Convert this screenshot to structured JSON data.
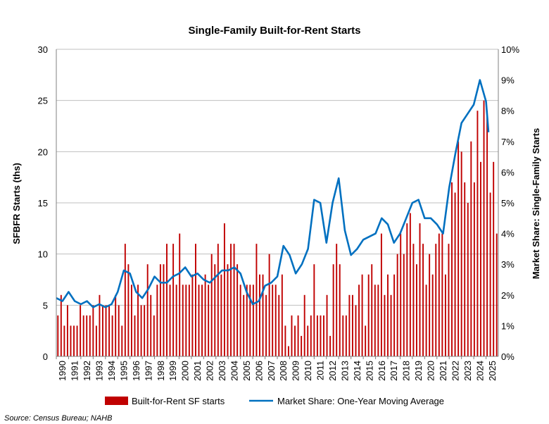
{
  "chart_data": {
    "type": "bar+line",
    "title": "Single-Family Built-for-Rent Starts",
    "ylabel": "SFBFR Starts (ths)",
    "y2label": "Market Share: Single-Family Starts",
    "ylim": [
      0,
      30
    ],
    "y2lim": [
      0,
      0.1
    ],
    "yticks": [
      "0",
      "5",
      "10",
      "15",
      "20",
      "25",
      "30"
    ],
    "y2ticks": [
      "0%",
      "1%",
      "2%",
      "3%",
      "4%",
      "5%",
      "6%",
      "7%",
      "8%",
      "9%",
      "10%"
    ],
    "years": [
      "1990",
      "1991",
      "1992",
      "1993",
      "1994",
      "1995",
      "1996",
      "1997",
      "1998",
      "1999",
      "2000",
      "2001",
      "2002",
      "2003",
      "2004",
      "2005",
      "2006",
      "2007",
      "2008",
      "2009",
      "2010",
      "2011",
      "2012",
      "2013",
      "2014",
      "2015",
      "2016",
      "2017",
      "2018",
      "2019",
      "2020",
      "2021",
      "2022",
      "2023",
      "2024",
      "2025"
    ],
    "grid": "horizontal",
    "legend_position": "bottom",
    "series": [
      {
        "name": "Built-for-Rent SF starts",
        "type": "bar",
        "color": "#c00000",
        "values": [
          4,
          6,
          3,
          5,
          3,
          3,
          3,
          5,
          4,
          4,
          4,
          5,
          3,
          6,
          5,
          5,
          5,
          4,
          6,
          5,
          3,
          11,
          9,
          7,
          4,
          7,
          5,
          5,
          9,
          6,
          4,
          7,
          9,
          9,
          11,
          7,
          11,
          7,
          12,
          7,
          7,
          7,
          8,
          11,
          7,
          7,
          8,
          7,
          10,
          9,
          11,
          8,
          13,
          9,
          11,
          11,
          9,
          7,
          6,
          7,
          7,
          7,
          11,
          8,
          8,
          6,
          10,
          7,
          7,
          6,
          8,
          3,
          1,
          4,
          3,
          4,
          2,
          6,
          3,
          4,
          9,
          4,
          4,
          4,
          6,
          2,
          9,
          11,
          9,
          4,
          4,
          6,
          6,
          5,
          7,
          8,
          3,
          8,
          9,
          7,
          7,
          12,
          6,
          8,
          6,
          8,
          10,
          12,
          10,
          13,
          14,
          11,
          9,
          13,
          11,
          7,
          10,
          8,
          11,
          12,
          12,
          8,
          11,
          17,
          16,
          21,
          20,
          17,
          15,
          21,
          17,
          24,
          19,
          25,
          24,
          16,
          19,
          12
        ]
      },
      {
        "name": "Market Share: One-Year Moving Average",
        "type": "line",
        "color": "#0070c0",
        "axis": "right",
        "points": [
          [
            1990.0,
            0.019
          ],
          [
            1990.5,
            0.018
          ],
          [
            1991.0,
            0.021
          ],
          [
            1991.5,
            0.018
          ],
          [
            1992.0,
            0.017
          ],
          [
            1992.5,
            0.018
          ],
          [
            1993.0,
            0.016
          ],
          [
            1993.5,
            0.017
          ],
          [
            1994.0,
            0.016
          ],
          [
            1994.5,
            0.017
          ],
          [
            1995.0,
            0.021
          ],
          [
            1995.5,
            0.028
          ],
          [
            1996.0,
            0.027
          ],
          [
            1996.5,
            0.021
          ],
          [
            1997.0,
            0.019
          ],
          [
            1997.5,
            0.022
          ],
          [
            1998.0,
            0.026
          ],
          [
            1998.5,
            0.024
          ],
          [
            1999.0,
            0.024
          ],
          [
            1999.5,
            0.026
          ],
          [
            2000.0,
            0.027
          ],
          [
            2000.5,
            0.029
          ],
          [
            2001.0,
            0.026
          ],
          [
            2001.5,
            0.027
          ],
          [
            2002.0,
            0.025
          ],
          [
            2002.5,
            0.024
          ],
          [
            2003.0,
            0.026
          ],
          [
            2003.5,
            0.028
          ],
          [
            2004.0,
            0.028
          ],
          [
            2004.5,
            0.029
          ],
          [
            2005.0,
            0.027
          ],
          [
            2005.5,
            0.021
          ],
          [
            2006.0,
            0.017
          ],
          [
            2006.5,
            0.018
          ],
          [
            2007.0,
            0.023
          ],
          [
            2007.5,
            0.024
          ],
          [
            2008.0,
            0.026
          ],
          [
            2008.5,
            0.036
          ],
          [
            2009.0,
            0.033
          ],
          [
            2009.5,
            0.027
          ],
          [
            2010.0,
            0.03
          ],
          [
            2010.5,
            0.035
          ],
          [
            2011.0,
            0.051
          ],
          [
            2011.5,
            0.05
          ],
          [
            2012.0,
            0.037
          ],
          [
            2012.5,
            0.05
          ],
          [
            2013.0,
            0.058
          ],
          [
            2013.5,
            0.041
          ],
          [
            2014.0,
            0.033
          ],
          [
            2014.5,
            0.035
          ],
          [
            2015.0,
            0.038
          ],
          [
            2015.5,
            0.039
          ],
          [
            2016.0,
            0.04
          ],
          [
            2016.5,
            0.045
          ],
          [
            2017.0,
            0.043
          ],
          [
            2017.5,
            0.037
          ],
          [
            2018.0,
            0.04
          ],
          [
            2018.5,
            0.045
          ],
          [
            2019.0,
            0.05
          ],
          [
            2019.5,
            0.051
          ],
          [
            2020.0,
            0.045
          ],
          [
            2020.5,
            0.045
          ],
          [
            2021.0,
            0.043
          ],
          [
            2021.5,
            0.04
          ],
          [
            2022.0,
            0.055
          ],
          [
            2022.5,
            0.066
          ],
          [
            2023.0,
            0.076
          ],
          [
            2023.5,
            0.079
          ],
          [
            2024.0,
            0.082
          ],
          [
            2024.5,
            0.09
          ],
          [
            2025.0,
            0.083
          ],
          [
            2025.2,
            0.073
          ]
        ]
      }
    ]
  },
  "source": "Source: Census Bureau; NAHB"
}
